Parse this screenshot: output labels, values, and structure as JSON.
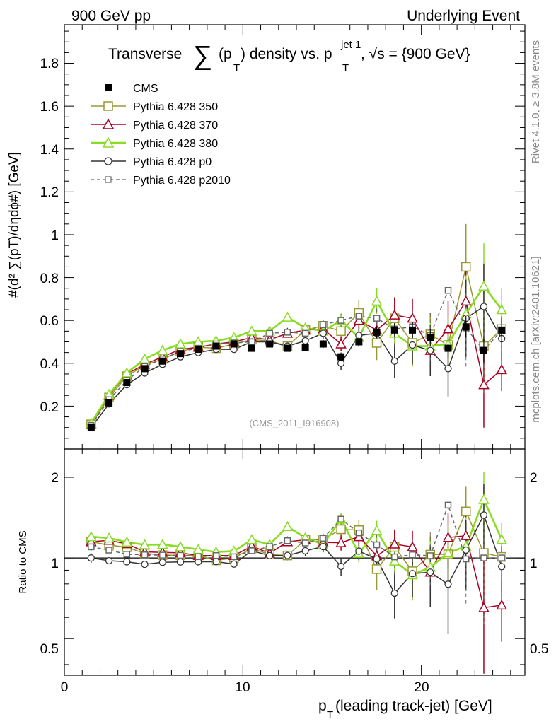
{
  "header": {
    "left_label": "900 GeV pp",
    "right_label": "Underlying Event"
  },
  "chart_data": {
    "type": "line",
    "title": {
      "prefix": "Transverse ",
      "sum_symbol": "∑",
      "mid": "(p",
      "sub_T": "T",
      "rest": ") density vs. p",
      "sup": "jet 1",
      "tail": ", √s = {900 GeV}"
    },
    "ylabel_main": "#(d² ∑(pT)/dηdϕ#) [GeV]",
    "ylabel_ratio": "Ratio to CMS",
    "xlabel": "p",
    "xlabel_sub": "T",
    "xlabel_rest": " (leading track-jet) [GeV]",
    "side_label_rivet": "Rivet 4.1.0, ≥ 3.8M events",
    "side_label_mcplots": "mcplots.cern.ch [arXiv:2401.10621]",
    "analysis_tag": "(CMS_2011_I916908)",
    "x_range": [
      0,
      25.8
    ],
    "y_range_main": [
      0,
      1.98
    ],
    "y_range_ratio_log": [
      0.365,
      2.55
    ],
    "x_ticks": [
      "0",
      "10",
      "20"
    ],
    "y_ticks_main": [
      "0.2",
      "0.4",
      "0.6",
      "0.8",
      "1",
      "1.2",
      "1.4",
      "1.6",
      "1.8"
    ],
    "y_ticks_ratio": [
      "0.5",
      "1",
      "2"
    ],
    "y_ticks_ratio_right": [
      "0.5",
      "1",
      "2"
    ],
    "x": [
      1.5,
      2.5,
      3.5,
      4.5,
      5.5,
      6.5,
      7.5,
      8.5,
      9.5,
      10.5,
      11.5,
      12.5,
      13.5,
      14.5,
      15.5,
      16.5,
      17.5,
      18.5,
      19.5,
      20.5,
      21.5,
      22.5,
      23.5,
      24.5
    ],
    "data": {
      "name": "CMS",
      "values": [
        0.1,
        0.215,
        0.31,
        0.375,
        0.41,
        0.445,
        0.465,
        0.48,
        0.49,
        0.47,
        0.49,
        0.47,
        0.475,
        0.49,
        0.43,
        0.5,
        0.545,
        0.555,
        0.555,
        0.52,
        0.47,
        0.57,
        0.46,
        0.555
      ],
      "errors": [
        0.005,
        0.007,
        0.008,
        0.009,
        0.009,
        0.01,
        0.01,
        0.011,
        0.011,
        0.012,
        0.013,
        0.014,
        0.016,
        0.018,
        0.02,
        0.024,
        0.028,
        0.032,
        0.036,
        0.04,
        0.045,
        0.05,
        0.055,
        0.06
      ]
    },
    "series": [
      {
        "name": "Pythia 6.428 350",
        "color": "#999933",
        "marker": "square-open",
        "dash": "",
        "values": [
          0.115,
          0.24,
          0.34,
          0.39,
          0.42,
          0.455,
          0.475,
          0.47,
          0.49,
          0.51,
          0.505,
          0.48,
          0.555,
          0.575,
          0.55,
          0.635,
          0.495,
          0.61,
          0.495,
          0.535,
          0.485,
          0.85,
          0.48,
          0.56
        ],
        "errors": [
          0.005,
          0.008,
          0.01,
          0.01,
          0.01,
          0.011,
          0.012,
          0.013,
          0.014,
          0.015,
          0.018,
          0.02,
          0.022,
          0.028,
          0.04,
          0.06,
          0.08,
          0.1,
          0.11,
          0.1,
          0.1,
          0.2,
          0.2,
          0.11
        ]
      },
      {
        "name": "Pythia 6.428 370",
        "color": "#aa0022",
        "marker": "triangle-open",
        "dash": "",
        "values": [
          0.115,
          0.25,
          0.35,
          0.395,
          0.43,
          0.465,
          0.475,
          0.49,
          0.5,
          0.52,
          0.51,
          0.54,
          0.555,
          0.56,
          0.49,
          0.6,
          0.555,
          0.625,
          0.61,
          0.46,
          0.56,
          0.69,
          0.3,
          0.37
        ]
      },
      {
        "name": "Pythia 6.428 380",
        "color": "#88dd22",
        "marker": "triangle-open",
        "dash": "",
        "values": [
          0.12,
          0.255,
          0.355,
          0.42,
          0.46,
          0.49,
          0.5,
          0.505,
          0.52,
          0.55,
          0.55,
          0.615,
          0.565,
          0.55,
          0.6,
          0.52,
          0.69,
          0.54,
          0.48,
          0.48,
          0.49,
          0.63,
          0.76,
          0.65
        ]
      },
      {
        "name": "Pythia 6.428 p0",
        "color": "#333333",
        "marker": "circle-open",
        "dash": "",
        "values": [
          0.1,
          0.21,
          0.3,
          0.355,
          0.395,
          0.43,
          0.45,
          0.465,
          0.465,
          0.5,
          0.5,
          0.48,
          0.505,
          0.54,
          0.4,
          0.53,
          0.54,
          0.41,
          0.485,
          0.46,
          0.375,
          0.61,
          0.665,
          0.515
        ]
      },
      {
        "name": "Pythia 6.428 p2010",
        "color": "#666666",
        "marker": "square-open",
        "dash": "5,4",
        "values": [
          0.11,
          0.23,
          0.32,
          0.385,
          0.42,
          0.455,
          0.47,
          0.49,
          0.495,
          0.5,
          0.54,
          0.545,
          0.54,
          0.58,
          0.6,
          0.62,
          0.61,
          0.56,
          0.57,
          0.53,
          0.74,
          0.565,
          0.46,
          0.555
        ]
      }
    ]
  }
}
